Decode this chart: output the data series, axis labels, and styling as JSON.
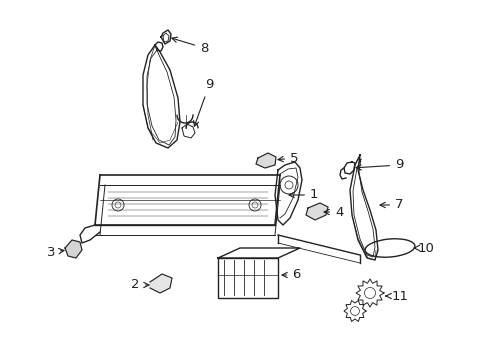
{
  "background_color": "#ffffff",
  "line_color": "#222222",
  "fig_width": 4.89,
  "fig_height": 3.6,
  "dpi": 100,
  "label_fontsize": 9.5,
  "line_width": 1.0
}
